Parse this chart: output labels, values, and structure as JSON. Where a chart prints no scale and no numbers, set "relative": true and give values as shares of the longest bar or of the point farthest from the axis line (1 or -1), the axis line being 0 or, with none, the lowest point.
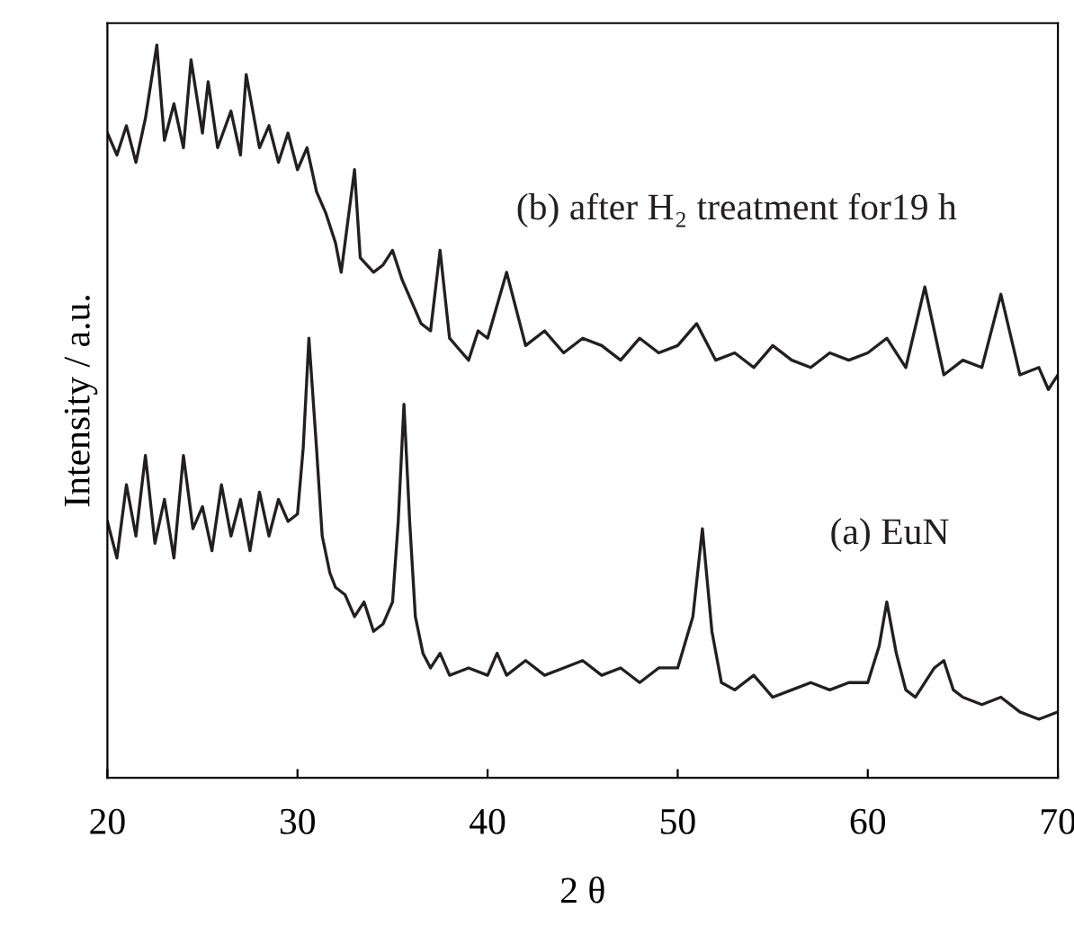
{
  "chart_data": {
    "type": "line",
    "xlabel": "2 θ",
    "ylabel": "Intensity / a.u.",
    "relative": true,
    "xlim": [
      20,
      70
    ],
    "xticks": [
      20,
      30,
      40,
      50,
      60,
      70
    ],
    "grid": false,
    "legend": false,
    "marker": "none",
    "line_style": "solid",
    "series": [
      {
        "name": "(a) EuN",
        "color": "#231f20",
        "x": [
          20,
          20.5,
          21,
          21.5,
          22,
          22.5,
          23,
          23.5,
          24,
          24.5,
          25,
          25.5,
          26,
          26.5,
          27,
          27.5,
          28,
          28.5,
          29,
          29.5,
          30,
          30.3,
          30.6,
          31,
          31.3,
          31.7,
          32,
          32.5,
          33,
          33.5,
          34,
          34.5,
          35,
          35.3,
          35.6,
          35.9,
          36.2,
          36.6,
          37,
          37.5,
          38,
          39,
          40,
          40.5,
          41,
          42,
          43,
          44,
          45,
          46,
          47,
          48,
          49,
          50,
          50.8,
          51.3,
          51.8,
          52.3,
          53,
          54,
          55,
          56,
          57,
          58,
          59,
          60,
          60.6,
          61,
          61.5,
          62,
          62.5,
          63.5,
          64,
          64.5,
          65,
          66,
          67,
          68,
          69,
          70
        ],
        "values": [
          0.35,
          0.3,
          0.4,
          0.33,
          0.44,
          0.32,
          0.38,
          0.3,
          0.44,
          0.34,
          0.37,
          0.31,
          0.4,
          0.33,
          0.38,
          0.31,
          0.39,
          0.33,
          0.38,
          0.35,
          0.36,
          0.45,
          0.6,
          0.45,
          0.33,
          0.28,
          0.26,
          0.25,
          0.22,
          0.24,
          0.2,
          0.21,
          0.24,
          0.35,
          0.51,
          0.35,
          0.22,
          0.17,
          0.15,
          0.17,
          0.14,
          0.15,
          0.14,
          0.17,
          0.14,
          0.16,
          0.14,
          0.15,
          0.16,
          0.14,
          0.15,
          0.13,
          0.15,
          0.15,
          0.22,
          0.34,
          0.2,
          0.13,
          0.12,
          0.14,
          0.11,
          0.12,
          0.13,
          0.12,
          0.13,
          0.13,
          0.18,
          0.24,
          0.17,
          0.12,
          0.11,
          0.15,
          0.16,
          0.12,
          0.11,
          0.1,
          0.11,
          0.09,
          0.08,
          0.09
        ]
      },
      {
        "name": "(b) after H₂ treatment for19 h",
        "color": "#231f20",
        "x": [
          20,
          20.5,
          21,
          21.5,
          22,
          22.6,
          23,
          23.5,
          24,
          24.4,
          25,
          25.3,
          25.8,
          26.5,
          27,
          27.3,
          28,
          28.5,
          29,
          29.5,
          30,
          30.5,
          31,
          31.5,
          32,
          32.3,
          33,
          33.3,
          34,
          34.5,
          35,
          35.5,
          36,
          36.5,
          37,
          37.5,
          38,
          39,
          39.5,
          40,
          41,
          42,
          43,
          44,
          45,
          46,
          47,
          48,
          49,
          50,
          51,
          52,
          53,
          54,
          55,
          56,
          57,
          58,
          59,
          60,
          61,
          62,
          63,
          64,
          65,
          66,
          67,
          68,
          69,
          69.5,
          70
        ],
        "values": [
          0.88,
          0.85,
          0.89,
          0.84,
          0.9,
          1.0,
          0.87,
          0.92,
          0.86,
          0.98,
          0.88,
          0.95,
          0.86,
          0.91,
          0.85,
          0.96,
          0.86,
          0.89,
          0.84,
          0.88,
          0.83,
          0.86,
          0.8,
          0.77,
          0.73,
          0.69,
          0.83,
          0.71,
          0.69,
          0.7,
          0.72,
          0.68,
          0.65,
          0.62,
          0.61,
          0.72,
          0.6,
          0.57,
          0.61,
          0.6,
          0.69,
          0.59,
          0.61,
          0.58,
          0.6,
          0.59,
          0.57,
          0.6,
          0.58,
          0.59,
          0.62,
          0.57,
          0.58,
          0.56,
          0.59,
          0.57,
          0.56,
          0.58,
          0.57,
          0.58,
          0.6,
          0.56,
          0.67,
          0.55,
          0.57,
          0.56,
          0.66,
          0.55,
          0.56,
          0.53,
          0.55
        ]
      }
    ]
  }
}
